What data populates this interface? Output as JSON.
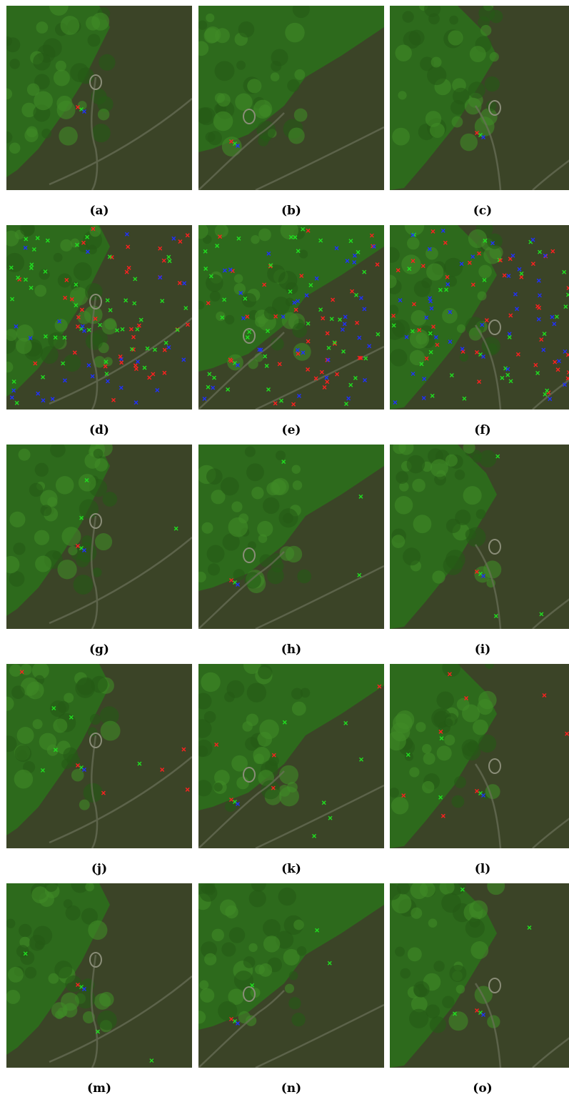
{
  "panels": [
    {
      "label": "(a)"
    },
    {
      "label": "(b)"
    },
    {
      "label": "(c)"
    },
    {
      "label": "(d)"
    },
    {
      "label": "(e)"
    },
    {
      "label": "(f)"
    },
    {
      "label": "(g)"
    },
    {
      "label": "(h)"
    },
    {
      "label": "(i)"
    },
    {
      "label": "(j)"
    },
    {
      "label": "(k)"
    },
    {
      "label": "(l)"
    },
    {
      "label": "(m)"
    },
    {
      "label": "(n)"
    },
    {
      "label": "(o)"
    }
  ]
}
